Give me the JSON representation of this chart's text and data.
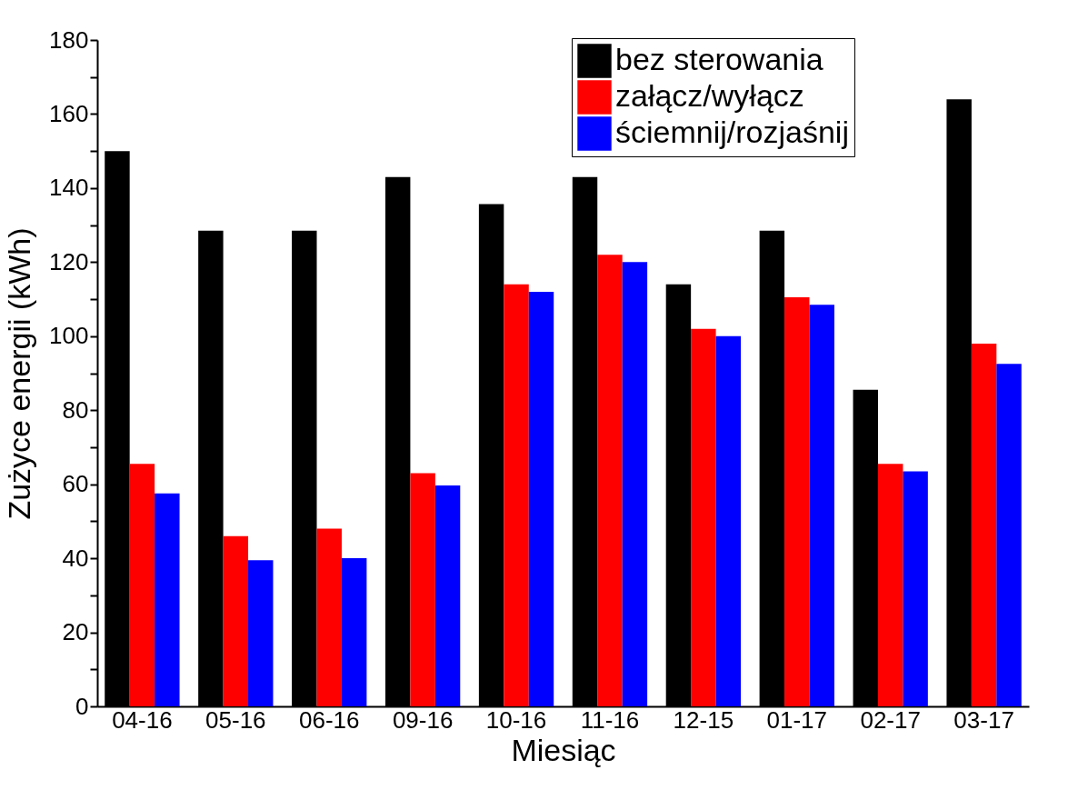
{
  "chart_data": {
    "type": "bar",
    "xlabel": "Miesiąc",
    "ylabel": "Zużyce energii   (kWh)",
    "categories": [
      "04-16",
      "05-16",
      "06-16",
      "09-16",
      "10-16",
      "11-16",
      "12-15",
      "01-17",
      "02-17",
      "03-17"
    ],
    "series": [
      {
        "name": "bez sterowania",
        "color": "#000000",
        "values": [
          150,
          128.5,
          128.5,
          143,
          135.7,
          143,
          114,
          128.5,
          85.5,
          164
        ]
      },
      {
        "name": "załącz/wyłącz",
        "color": "#ff0000",
        "values": [
          65.5,
          46,
          48,
          63,
          114,
          122,
          102,
          110.5,
          65.5,
          98
        ]
      },
      {
        "name": "ściemnij/rozjaśnij",
        "color": "#0000ff",
        "values": [
          57.5,
          39.5,
          40,
          59.7,
          112,
          120,
          100,
          108.5,
          63.5,
          92.5
        ]
      }
    ],
    "ylim": [
      0,
      180
    ],
    "yticks": [
      0,
      {
        "value": 10,
        "label": null
      },
      20,
      {
        "value": 30,
        "label": null
      },
      40,
      {
        "value": 50,
        "label": null
      },
      60,
      {
        "value": 70,
        "label": null
      },
      80,
      {
        "value": 90,
        "label": null
      },
      100,
      {
        "value": 110,
        "label": null
      },
      120,
      {
        "value": 130,
        "label": null
      },
      140,
      {
        "value": 150,
        "label": null
      },
      160,
      {
        "value": 170,
        "label": null
      },
      180
    ],
    "grid": false,
    "legend": "top right"
  }
}
